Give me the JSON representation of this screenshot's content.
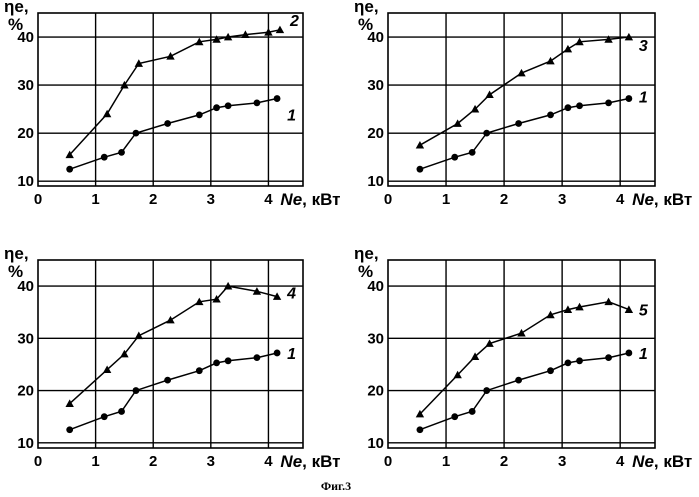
{
  "figure_caption": "Фиг.3",
  "chart_data": [
    {
      "type": "line",
      "ylabel_symbol": "ηe,",
      "ylabel_unit": "%",
      "xlabel_symbol": "Ne",
      "xlabel_unit": ", кВт",
      "xlim": [
        0,
        4.6
      ],
      "ylim": [
        9,
        45
      ],
      "xticks": [
        0,
        1,
        2,
        3,
        4
      ],
      "yticks": [
        10,
        20,
        30,
        40
      ],
      "grid": true,
      "series": [
        {
          "name": "2",
          "marker": "triangle",
          "x": [
            0.55,
            1.2,
            1.5,
            1.75,
            2.3,
            2.8,
            3.1,
            3.3,
            3.6,
            4.0,
            4.2
          ],
          "y": [
            15.5,
            24,
            30,
            34.5,
            36,
            39,
            39.5,
            40,
            40.5,
            41,
            41.5
          ]
        },
        {
          "name": "1",
          "marker": "circle",
          "x": [
            0.55,
            1.15,
            1.45,
            1.7,
            2.25,
            2.8,
            3.1,
            3.3,
            3.8,
            4.15
          ],
          "y": [
            12.5,
            15,
            16,
            20,
            22,
            23.8,
            25.3,
            25.7,
            26.3,
            27.2
          ]
        }
      ]
    },
    {
      "type": "line",
      "ylabel_symbol": "ηe,",
      "ylabel_unit": "%",
      "xlabel_symbol": "Ne",
      "xlabel_unit": ", кВт",
      "xlim": [
        0,
        4.6
      ],
      "ylim": [
        9,
        45
      ],
      "xticks": [
        0,
        1,
        2,
        3,
        4
      ],
      "yticks": [
        10,
        20,
        30,
        40
      ],
      "grid": true,
      "series": [
        {
          "name": "3",
          "marker": "triangle",
          "x": [
            0.55,
            1.2,
            1.5,
            1.75,
            2.3,
            2.8,
            3.1,
            3.3,
            3.8,
            4.15
          ],
          "y": [
            17.5,
            22,
            25,
            28,
            32.5,
            35,
            37.5,
            39,
            39.5,
            40
          ]
        },
        {
          "name": "1",
          "marker": "circle",
          "x": [
            0.55,
            1.15,
            1.45,
            1.7,
            2.25,
            2.8,
            3.1,
            3.3,
            3.8,
            4.15
          ],
          "y": [
            12.5,
            15,
            16,
            20,
            22,
            23.8,
            25.3,
            25.7,
            26.3,
            27.2
          ]
        }
      ]
    },
    {
      "type": "line",
      "ylabel_symbol": "ηe,",
      "ylabel_unit": "%",
      "xlabel_symbol": "Ne",
      "xlabel_unit": ", кВт",
      "xlim": [
        0,
        4.6
      ],
      "ylim": [
        9,
        45
      ],
      "xticks": [
        0,
        1,
        2,
        3,
        4
      ],
      "yticks": [
        10,
        20,
        30,
        40
      ],
      "grid": true,
      "series": [
        {
          "name": "4",
          "marker": "triangle",
          "x": [
            0.55,
            1.2,
            1.5,
            1.75,
            2.3,
            2.8,
            3.1,
            3.3,
            3.8,
            4.15
          ],
          "y": [
            17.5,
            24,
            27,
            30.5,
            33.5,
            37,
            37.5,
            40,
            39,
            38
          ]
        },
        {
          "name": "1",
          "marker": "circle",
          "x": [
            0.55,
            1.15,
            1.45,
            1.7,
            2.25,
            2.8,
            3.1,
            3.3,
            3.8,
            4.15
          ],
          "y": [
            12.5,
            15,
            16,
            20,
            22,
            23.8,
            25.3,
            25.7,
            26.3,
            27.2
          ]
        }
      ]
    },
    {
      "type": "line",
      "ylabel_symbol": "ηe,",
      "ylabel_unit": "%",
      "xlabel_symbol": "Ne",
      "xlabel_unit": ", кВт",
      "xlim": [
        0,
        4.6
      ],
      "ylim": [
        9,
        45
      ],
      "xticks": [
        0,
        1,
        2,
        3,
        4
      ],
      "yticks": [
        10,
        20,
        30,
        40
      ],
      "grid": true,
      "series": [
        {
          "name": "5",
          "marker": "triangle",
          "x": [
            0.55,
            1.2,
            1.5,
            1.75,
            2.3,
            2.8,
            3.1,
            3.3,
            3.8,
            4.15
          ],
          "y": [
            15.5,
            23,
            26.5,
            29,
            31,
            34.5,
            35.5,
            36,
            37,
            35.5
          ]
        },
        {
          "name": "1",
          "marker": "circle",
          "x": [
            0.55,
            1.15,
            1.45,
            1.7,
            2.25,
            2.8,
            3.1,
            3.3,
            3.8,
            4.15
          ],
          "y": [
            12.5,
            15,
            16,
            20,
            22,
            23.8,
            25.3,
            25.7,
            26.3,
            27.2
          ]
        }
      ]
    }
  ]
}
